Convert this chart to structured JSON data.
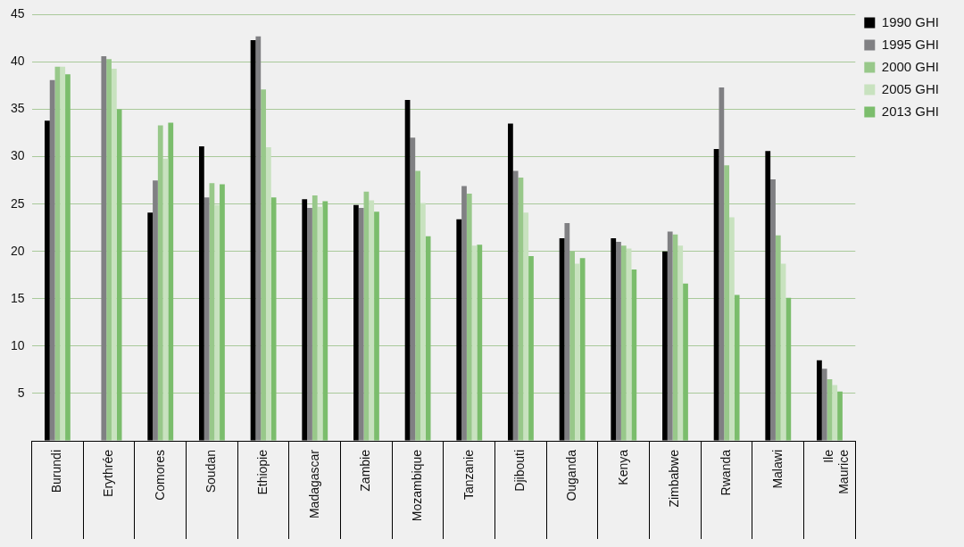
{
  "chart_data": {
    "type": "bar",
    "categories": [
      "Burundi",
      "Erythrée",
      "Comores",
      "Soudan",
      "Ethiopie",
      "Madagascar",
      "Zambie",
      "Mozambique",
      "Tanzanie",
      "Djibouti",
      "Ouganda",
      "Kenya",
      "Zimbabwe",
      "Rwanda",
      "Malawi",
      "Ile Maurice"
    ],
    "series": [
      {
        "name": "1990 GHI",
        "color": "#000000",
        "values": [
          33.8,
          null,
          24.1,
          31.1,
          42.3,
          25.5,
          24.9,
          36.0,
          23.4,
          33.5,
          21.4,
          21.4,
          20.0,
          30.8,
          30.6,
          8.5
        ]
      },
      {
        "name": "1995 GHI",
        "color": "#808083",
        "values": [
          38.1,
          40.6,
          27.5,
          25.7,
          42.7,
          24.6,
          24.6,
          32.0,
          26.9,
          28.5,
          23.0,
          21.0,
          22.1,
          37.3,
          27.6,
          7.6
        ]
      },
      {
        "name": "2000 GHI",
        "color": "#98c88a",
        "values": [
          39.5,
          40.3,
          33.3,
          27.2,
          37.1,
          25.9,
          26.3,
          28.5,
          26.1,
          27.8,
          20.0,
          20.6,
          21.8,
          29.1,
          21.7,
          6.5
        ]
      },
      {
        "name": "2005 GHI",
        "color": "#c8e2bf",
        "values": [
          39.5,
          39.3,
          29.8,
          24.9,
          31.0,
          24.7,
          25.4,
          25.1,
          20.6,
          24.1,
          18.7,
          20.3,
          20.6,
          23.6,
          18.7,
          5.9
        ]
      },
      {
        "name": "2013 GHI",
        "color": "#7bbd6c",
        "values": [
          38.7,
          35.0,
          33.6,
          27.1,
          25.7,
          25.3,
          24.2,
          21.6,
          20.7,
          19.5,
          19.3,
          18.1,
          16.6,
          15.4,
          15.1,
          5.2
        ]
      }
    ],
    "ylim": [
      0,
      45
    ],
    "yticks": [
      {
        "value": 0,
        "label": null
      },
      5,
      10,
      15,
      20,
      25,
      30,
      35,
      40,
      45
    ],
    "grid": "y",
    "legend": "top right"
  }
}
